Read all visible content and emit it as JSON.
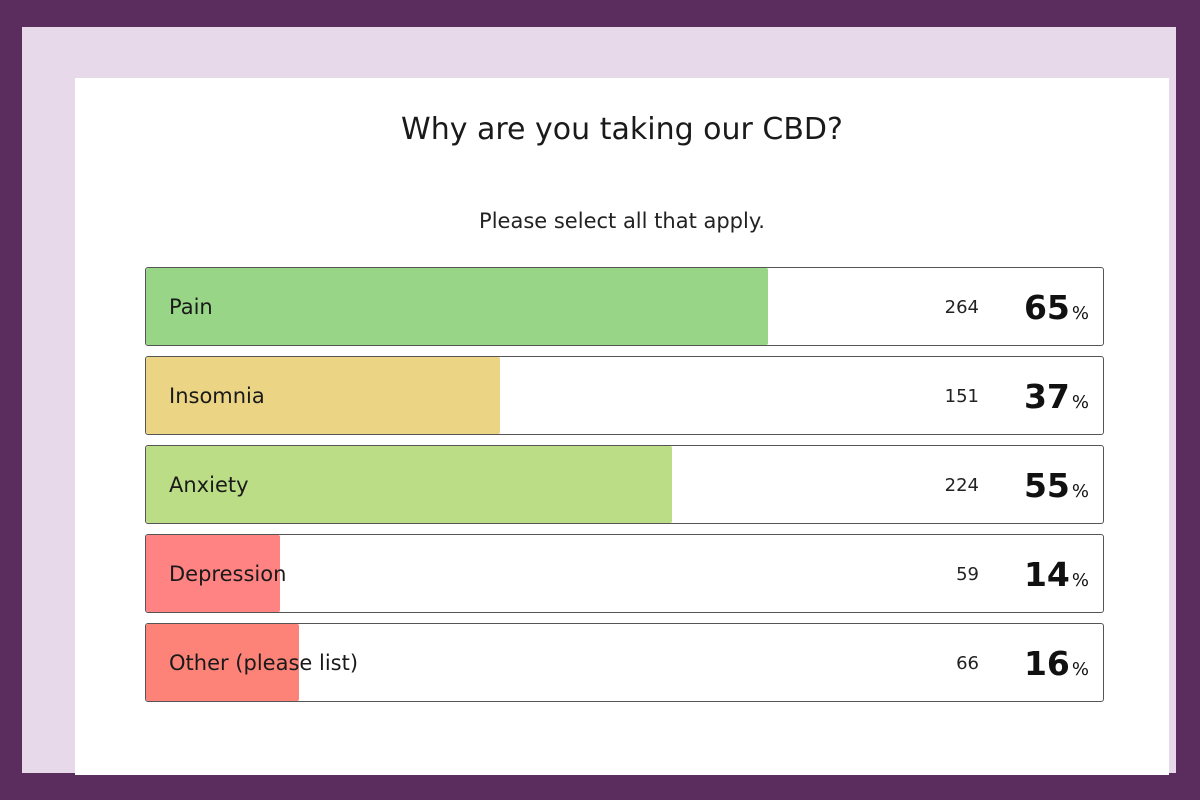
{
  "chart_data": {
    "type": "bar",
    "title": "Why are you taking our CBD?",
    "subtitle": "Please select all that apply.",
    "categories": [
      "Pain",
      "Insomnia",
      "Anxiety",
      "Depression",
      "Other (please list)"
    ],
    "counts": [
      264,
      151,
      224,
      59,
      66
    ],
    "values": [
      65,
      37,
      55,
      14,
      16
    ],
    "percent_symbol": "%",
    "colors": [
      "#98d587",
      "#ebd585",
      "#badd85",
      "#ff8383",
      "#fd8378"
    ]
  }
}
